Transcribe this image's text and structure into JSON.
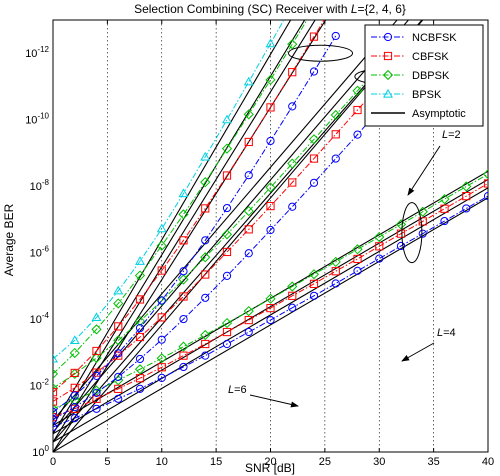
{
  "chart_data": {
    "type": "line",
    "title": {
      "prefix": "Selection Combining (SC) Receiver with ",
      "var": "L",
      "suffix": "={2, 4, 6}"
    },
    "xlabel": "SNR [dB]",
    "ylabel": "Average BER",
    "xlim": [
      0,
      40
    ],
    "ylim_exp": [
      -13,
      0
    ],
    "y_scale": "log",
    "grid": true,
    "xticks": [
      0,
      5,
      10,
      15,
      20,
      25,
      30,
      35,
      40
    ],
    "yticks_exp": [
      0,
      -2,
      -4,
      -6,
      -8,
      -10,
      -12
    ],
    "legend": {
      "position": "top-right",
      "entries": [
        {
          "label": "NCBFSK",
          "color": "#0000ff",
          "marker": "circle",
          "dash": "dashdot"
        },
        {
          "label": "CBFSK",
          "color": "#ff0000",
          "marker": "square",
          "dash": "dashdot"
        },
        {
          "label": "DBPSK",
          "color": "#00c000",
          "marker": "diamond",
          "dash": "dashdot"
        },
        {
          "label": "BPSK",
          "color": "#00d0e0",
          "marker": "triangle",
          "dash": "dashdot"
        },
        {
          "label": "Asymptotic",
          "color": "#000000",
          "marker": "none",
          "dash": "solid"
        }
      ]
    },
    "series": [
      {
        "name": "NCBFSK",
        "L": 2,
        "color": "#0000ff",
        "marker": "circle",
        "x": [
          0,
          2,
          4,
          6,
          8,
          10,
          12,
          14,
          16,
          18,
          20,
          22,
          24,
          26,
          28,
          30,
          32,
          34,
          36,
          38,
          40
        ],
        "log10_y": [
          -0.75,
          -1.02,
          -1.3,
          -1.6,
          -1.9,
          -2.23,
          -2.56,
          -2.9,
          -3.25,
          -3.61,
          -3.97,
          -4.34,
          -4.7,
          -5.07,
          -5.45,
          -5.82,
          -6.2,
          -6.57,
          -6.95,
          -7.33,
          -7.7
        ]
      },
      {
        "name": "CBFSK",
        "L": 2,
        "color": "#ff0000",
        "marker": "square",
        "x": [
          0,
          2,
          4,
          6,
          8,
          10,
          12,
          14,
          16,
          18,
          20,
          22,
          24,
          26,
          28,
          30,
          32,
          34,
          36,
          38,
          40
        ],
        "log10_y": [
          -1.05,
          -1.3,
          -1.6,
          -1.9,
          -2.22,
          -2.55,
          -2.9,
          -3.25,
          -3.61,
          -3.97,
          -4.33,
          -4.7,
          -5.06,
          -5.44,
          -5.81,
          -6.19,
          -6.57,
          -6.94,
          -7.32,
          -7.7,
          -8.08
        ]
      },
      {
        "name": "DBPSK",
        "L": 2,
        "color": "#00c000",
        "marker": "diamond",
        "x": [
          0,
          2,
          4,
          6,
          8,
          10,
          12,
          14,
          16,
          18,
          20,
          22,
          24,
          26,
          28,
          30,
          32,
          34,
          36,
          38,
          40
        ],
        "log10_y": [
          -1.3,
          -1.56,
          -1.85,
          -2.16,
          -2.49,
          -2.82,
          -3.17,
          -3.52,
          -3.88,
          -4.24,
          -4.61,
          -4.98,
          -5.35,
          -5.72,
          -6.1,
          -6.47,
          -6.85,
          -7.23,
          -7.61,
          -7.99,
          -8.36
        ]
      },
      {
        "name": "NCBFSK",
        "L": 4,
        "color": "#0000ff",
        "marker": "circle",
        "x": [
          0,
          2,
          4,
          6,
          8,
          10,
          12,
          14,
          16,
          18,
          20,
          22,
          24,
          26,
          28,
          30,
          32
        ],
        "log10_y": [
          -0.98,
          -1.35,
          -1.78,
          -2.26,
          -2.8,
          -3.38,
          -4.0,
          -4.64,
          -5.3,
          -5.98,
          -6.68,
          -7.38,
          -8.1,
          -8.83,
          -9.55,
          -10.3,
          -11.03
        ]
      },
      {
        "name": "CBFSK",
        "L": 4,
        "color": "#ff0000",
        "marker": "square",
        "x": [
          0,
          2,
          4,
          6,
          8,
          10,
          12,
          14,
          16,
          18,
          20,
          22,
          24,
          26,
          28,
          30,
          32,
          34
        ],
        "log10_y": [
          -1.52,
          -1.93,
          -2.39,
          -2.9,
          -3.46,
          -4.05,
          -4.68,
          -5.34,
          -6.02,
          -6.7,
          -7.4,
          -8.11,
          -8.83,
          -9.56,
          -10.29,
          -11.02,
          -11.75,
          -12.48
        ]
      },
      {
        "name": "DBPSK",
        "L": 4,
        "color": "#00c000",
        "marker": "diamond",
        "x": [
          0,
          2,
          4,
          6,
          8,
          10,
          12,
          14,
          16,
          18,
          20,
          22,
          24,
          26,
          28,
          30,
          32
        ],
        "log10_y": [
          -1.92,
          -2.35,
          -2.83,
          -3.36,
          -3.94,
          -4.55,
          -5.19,
          -5.86,
          -6.55,
          -7.25,
          -7.96,
          -8.68,
          -9.41,
          -10.14,
          -10.87,
          -11.6,
          -12.34
        ]
      },
      {
        "name": "NCBFSK",
        "L": 6,
        "color": "#0000ff",
        "marker": "circle",
        "x": [
          0,
          2,
          4,
          6,
          8,
          10,
          12,
          14,
          16,
          18,
          20,
          22,
          24,
          26
        ],
        "log10_y": [
          -1.2,
          -1.7,
          -2.29,
          -2.97,
          -3.73,
          -4.56,
          -5.44,
          -6.37,
          -7.34,
          -8.33,
          -9.36,
          -10.4,
          -11.45,
          -12.52
        ]
      },
      {
        "name": "CBFSK",
        "L": 6,
        "color": "#ff0000",
        "marker": "square",
        "x": [
          0,
          2,
          4,
          6,
          8,
          10,
          12,
          14,
          16,
          18,
          20,
          22,
          24,
          26
        ],
        "log10_y": [
          -1.8,
          -2.38,
          -3.04,
          -3.78,
          -4.59,
          -5.46,
          -6.37,
          -7.33,
          -8.32,
          -9.33,
          -10.37,
          -11.43,
          -12.5,
          -13.58
        ]
      },
      {
        "name": "DBPSK",
        "L": 6,
        "color": "#00c000",
        "marker": "diamond",
        "x": [
          0,
          2,
          4,
          6,
          8,
          10,
          12,
          14,
          16,
          18,
          20,
          22,
          24
        ],
        "log10_y": [
          -2.35,
          -2.98,
          -3.69,
          -4.47,
          -5.31,
          -6.21,
          -7.15,
          -8.12,
          -9.13,
          -10.16,
          -11.2,
          -12.27,
          -13.35
        ]
      },
      {
        "name": "BPSK",
        "L": 6,
        "color": "#00d0e0",
        "marker": "triangle",
        "x": [
          0,
          2,
          4,
          6,
          8,
          10,
          12,
          14,
          16,
          18,
          20,
          22,
          24
        ],
        "log10_y": [
          -2.8,
          -3.36,
          -4.05,
          -4.85,
          -5.74,
          -6.72,
          -7.78,
          -8.88,
          -10.0,
          -11.14,
          -12.29,
          -13.45,
          -14.6
        ]
      }
    ],
    "asymptotes": [
      {
        "x": [
          0,
          40
        ],
        "log10_y": [
          0.0,
          -7.65
        ]
      },
      {
        "x": [
          0,
          40
        ],
        "log10_y": [
          -0.3,
          -7.95
        ]
      },
      {
        "x": [
          0,
          40
        ],
        "log10_y": [
          -0.55,
          -8.2
        ]
      },
      {
        "x": [
          0,
          40
        ],
        "log10_y": [
          -0.8,
          -8.45
        ]
      },
      {
        "x": [
          0,
          34
        ],
        "log10_y": [
          0.0,
          -13.0
        ]
      },
      {
        "x": [
          0,
          35
        ],
        "log10_y": [
          -0.3,
          -13.4
        ]
      },
      {
        "x": [
          0,
          34
        ],
        "log10_y": [
          -0.6,
          -13.5
        ]
      },
      {
        "x": [
          0,
          34
        ],
        "log10_y": [
          -0.95,
          -13.9
        ]
      },
      {
        "x": [
          0,
          27
        ],
        "log10_y": [
          0.0,
          -14.0
        ]
      },
      {
        "x": [
          0,
          26
        ],
        "log10_y": [
          -0.3,
          -14.0
        ]
      },
      {
        "x": [
          0,
          25
        ],
        "log10_y": [
          -0.55,
          -14.0
        ]
      },
      {
        "x": [
          0,
          24
        ],
        "log10_y": [
          -0.8,
          -14.2
        ]
      }
    ],
    "annotations": [
      {
        "var": "L",
        "text": "=2",
        "group_x": 33,
        "group_log10_y": -6.6
      },
      {
        "var": "L",
        "text": "=4",
        "group_x": 30.7,
        "group_log10_y": -11.3
      },
      {
        "var": "L",
        "text": "=6",
        "group_x": 24.6,
        "group_log10_y": -12.0
      }
    ]
  }
}
